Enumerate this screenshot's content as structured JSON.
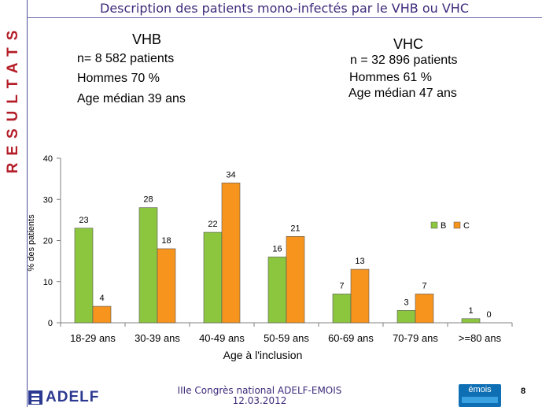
{
  "slide": {
    "vertical_label": "RESULTATS",
    "title": "Description des patients mono-infectés par le VHB ou VHC",
    "page_number": "8"
  },
  "vhb": {
    "header": "VHB",
    "line1": "n= 8 582 patients",
    "line2": "Hommes 70 %",
    "line3": "Age médian 39 ans"
  },
  "vhc": {
    "header": "VHC",
    "line1": "n = 32 896 patients",
    "line2": "Hommes 61 %",
    "line3": "Age médian 47 ans"
  },
  "chart_data": {
    "type": "bar",
    "title": "",
    "xlabel": "Age à l'inclusion",
    "ylabel": "% des patients",
    "ylim": [
      0,
      40
    ],
    "yticks": [
      0,
      10,
      20,
      30,
      40
    ],
    "categories": [
      "18-29 ans",
      "30-39 ans",
      "40-49 ans",
      "50-59 ans",
      "60-69 ans",
      "70-79 ans",
      ">=80 ans"
    ],
    "series": [
      {
        "name": "B",
        "color": "#8cc63f",
        "values": [
          23,
          28,
          22,
          16,
          7,
          3,
          1
        ]
      },
      {
        "name": "C",
        "color": "#f7941d",
        "values": [
          4,
          18,
          34,
          21,
          13,
          7,
          0
        ]
      }
    ],
    "grid": false,
    "legend": "right"
  },
  "footer": {
    "line1": "IIIe Congrès national ADELF-EMOIS",
    "line2": "12.03.2012",
    "adelf_logo": "ADELF",
    "emois_logo": "émois"
  }
}
